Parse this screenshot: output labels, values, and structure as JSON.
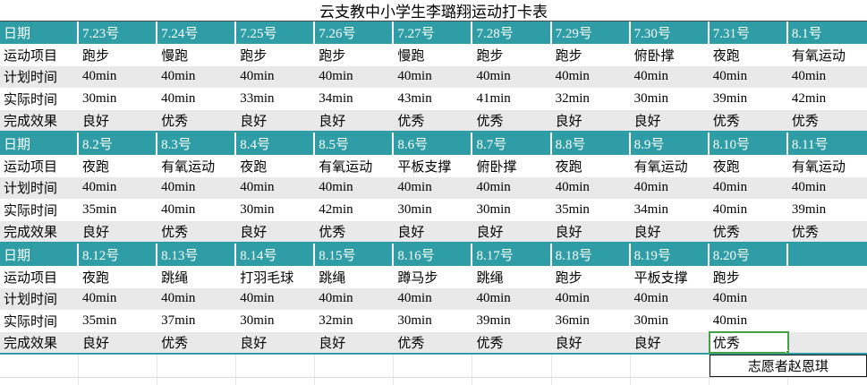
{
  "title": "云支教中小学生李璐翔运动打卡表",
  "volunteer": "志愿者赵恩琪",
  "colors": {
    "header_bg": "#2E9DA6",
    "stripe_bg": "#E9E9E9",
    "selection_border": "#43A047"
  },
  "table": {
    "date_label": "日期",
    "row_labels": [
      "运动项目",
      "计划时间",
      "实际时间",
      "完成效果"
    ],
    "blocks": [
      {
        "dates": [
          "7.23号",
          "7.24号",
          "7.25号",
          "7.26号",
          "7.27号",
          "7.28号",
          "7.29号",
          "7.30号",
          "7.31号",
          "8.1号"
        ],
        "rows": [
          [
            "跑步",
            "慢跑",
            "跑步",
            "跑步",
            "慢跑",
            "跑步",
            "跑步",
            "俯卧撑",
            "夜跑",
            "有氧运动"
          ],
          [
            "40min",
            "40min",
            "40min",
            "40min",
            "40min",
            "40min",
            "40min",
            "40min",
            "40min",
            "40min"
          ],
          [
            "30min",
            "40min",
            "33min",
            "34min",
            "43min",
            "41min",
            "32min",
            "30min",
            "39min",
            "42min"
          ],
          [
            "良好",
            "优秀",
            "良好",
            "良好",
            "优秀",
            "优秀",
            "良好",
            "良好",
            "优秀",
            "优秀"
          ]
        ]
      },
      {
        "dates": [
          "8.2号",
          "8.3号",
          "8.4号",
          "8.5号",
          "8.6号",
          "8.7号",
          "8.8号",
          "8.9号",
          "8.10号",
          "8.11号"
        ],
        "rows": [
          [
            "夜跑",
            "有氧运动",
            "夜跑",
            "有氧运动",
            "平板支撑",
            "俯卧撑",
            "夜跑",
            "有氧运动",
            "夜跑",
            "有氧运动"
          ],
          [
            "40min",
            "40min",
            "40min",
            "40min",
            "40min",
            "40min",
            "40min",
            "40min",
            "40min",
            "40min"
          ],
          [
            "35min",
            "40min",
            "30min",
            "42min",
            "30min",
            "30min",
            "35min",
            "34min",
            "40min",
            "39min"
          ],
          [
            "良好",
            "优秀",
            "良好",
            "优秀",
            "良好",
            "良好",
            "良好",
            "良好",
            "优秀",
            "优秀"
          ]
        ]
      },
      {
        "dates": [
          "8.12号",
          "8.13号",
          "8.14号",
          "8.15号",
          "8.16号",
          "8.17号",
          "8.18号",
          "8.19号",
          "8.20号",
          ""
        ],
        "rows": [
          [
            "夜跑",
            "跳绳",
            "打羽毛球",
            "跳绳",
            "蹲马步",
            "跳绳",
            "跑步",
            "平板支撑",
            "跑步",
            ""
          ],
          [
            "40min",
            "40min",
            "40min",
            "40min",
            "40min",
            "40min",
            "40min",
            "40min",
            "40min",
            ""
          ],
          [
            "35min",
            "37min",
            "30min",
            "32min",
            "30min",
            "39min",
            "36min",
            "30min",
            "40min",
            ""
          ],
          [
            "良好",
            "优秀",
            "良好",
            "良好",
            "优秀",
            "优秀",
            "良好",
            "良好",
            "优秀",
            ""
          ]
        ]
      }
    ]
  },
  "selection": {
    "block": 2,
    "row": 3,
    "col": 8,
    "value": "优秀"
  }
}
